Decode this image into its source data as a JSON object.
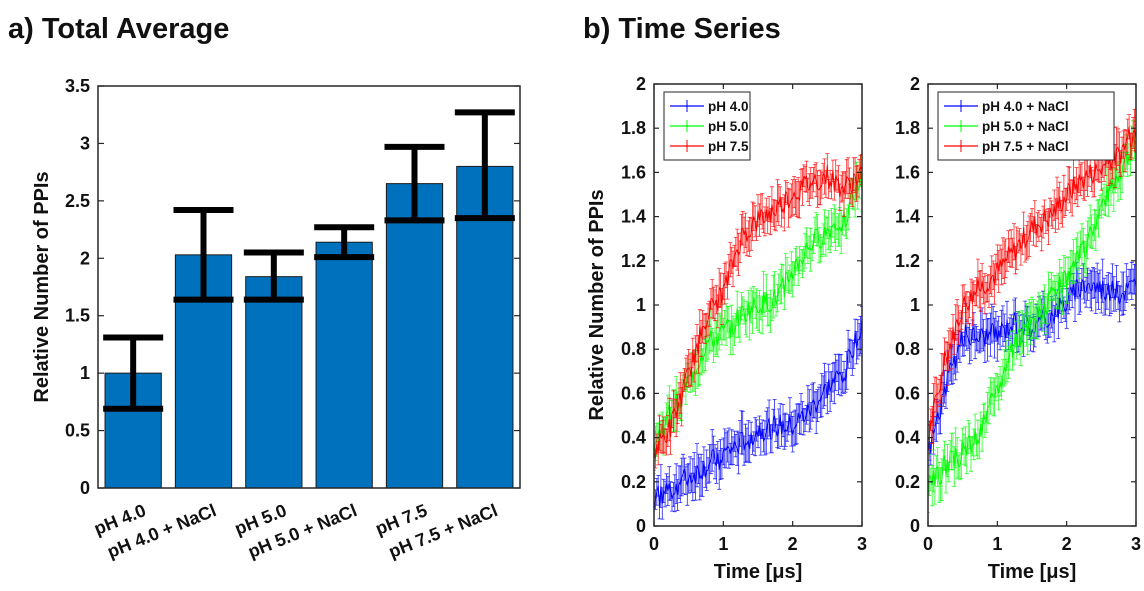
{
  "titles": {
    "a": "a) Total Average",
    "b": "b) Time Series"
  },
  "chart_data": [
    {
      "type": "bar",
      "title": "a) Total Average",
      "ylabel": "Relative Number of PPIs",
      "xlabel": "",
      "ylim": [
        0,
        3.5
      ],
      "yticks": [
        "0",
        "0.5",
        "1",
        "1.5",
        "2",
        "2.5",
        "3",
        "3.5"
      ],
      "categories": [
        "pH 4.0",
        "pH 4.0 + NaCl",
        "pH 5.0",
        "pH 5.0 + NaCl",
        "pH 7.5",
        "pH 7.5 + NaCl"
      ],
      "values": [
        1.0,
        2.03,
        1.84,
        2.14,
        2.65,
        2.8
      ],
      "error_low": [
        0.69,
        1.64,
        1.64,
        2.01,
        2.33,
        2.35
      ],
      "error_high": [
        1.31,
        2.42,
        2.05,
        2.27,
        2.97,
        3.27
      ],
      "bar_color": "#0072BD",
      "errorbar_color": "#000000",
      "grid": false
    },
    {
      "type": "line",
      "title": "b) Time Series",
      "xlabel": "Time [μs]",
      "ylabel": "Relative Number of PPIs",
      "xlim": [
        0,
        3
      ],
      "ylim": [
        0,
        2
      ],
      "xticks": [
        "0",
        "1",
        "2",
        "3"
      ],
      "yticks": [
        "0",
        "0.2",
        "0.4",
        "0.6",
        "0.8",
        "1",
        "1.2",
        "1.4",
        "1.6",
        "1.8",
        "2"
      ],
      "legend_position": "top-left",
      "grid": false,
      "series": [
        {
          "name": "pH 4.0",
          "color": "#0000FF",
          "x": [
            0,
            0.25,
            0.5,
            0.75,
            1.0,
            1.25,
            1.5,
            1.75,
            2.0,
            2.25,
            2.5,
            2.75,
            3.0
          ],
          "y": [
            0.12,
            0.17,
            0.22,
            0.27,
            0.32,
            0.37,
            0.43,
            0.45,
            0.45,
            0.52,
            0.62,
            0.7,
            0.93
          ]
        },
        {
          "name": "pH 5.0",
          "color": "#00FF00",
          "x": [
            0,
            0.25,
            0.5,
            0.75,
            1.0,
            1.25,
            1.5,
            1.75,
            2.0,
            2.25,
            2.5,
            2.75,
            3.0
          ],
          "y": [
            0.36,
            0.52,
            0.65,
            0.82,
            0.87,
            0.95,
            1.0,
            1.02,
            1.15,
            1.27,
            1.33,
            1.4,
            1.57
          ]
        },
        {
          "name": "pH 7.5",
          "color": "#FF0000",
          "x": [
            0,
            0.25,
            0.5,
            0.75,
            1.0,
            1.25,
            1.5,
            1.75,
            2.0,
            2.25,
            2.5,
            2.75,
            3.0
          ],
          "y": [
            0.33,
            0.45,
            0.68,
            0.95,
            1.05,
            1.3,
            1.38,
            1.43,
            1.5,
            1.55,
            1.58,
            1.52,
            1.6
          ]
        }
      ],
      "error_half_width": 0.07
    },
    {
      "type": "line",
      "title": "",
      "xlabel": "Time [μs]",
      "ylabel": "",
      "xlim": [
        0,
        3
      ],
      "ylim": [
        0,
        2
      ],
      "xticks": [
        "0",
        "1",
        "2",
        "3"
      ],
      "yticks": [
        "0",
        "0.2",
        "0.4",
        "0.6",
        "0.8",
        "1",
        "1.2",
        "1.4",
        "1.6",
        "1.8",
        "2"
      ],
      "legend_position": "top-left",
      "grid": false,
      "series": [
        {
          "name": "pH 4.0 + NaCl",
          "color": "#0000FF",
          "x": [
            0,
            0.25,
            0.5,
            0.75,
            1.0,
            1.25,
            1.5,
            1.75,
            2.0,
            2.25,
            2.5,
            2.75,
            3.0
          ],
          "y": [
            0.33,
            0.62,
            0.86,
            0.86,
            0.87,
            0.93,
            0.9,
            0.95,
            1.02,
            1.1,
            1.08,
            1.05,
            1.1
          ]
        },
        {
          "name": "pH 5.0 + NaCl",
          "color": "#00FF00",
          "x": [
            0,
            0.25,
            0.5,
            0.75,
            1.0,
            1.25,
            1.5,
            1.75,
            2.0,
            2.25,
            2.5,
            2.75,
            3.0
          ],
          "y": [
            0.17,
            0.27,
            0.33,
            0.42,
            0.62,
            0.82,
            0.92,
            1.02,
            1.12,
            1.25,
            1.45,
            1.6,
            1.75
          ]
        },
        {
          "name": "pH 7.5 + NaCl",
          "color": "#FF0000",
          "x": [
            0,
            0.25,
            0.5,
            0.75,
            1.0,
            1.25,
            1.5,
            1.75,
            2.0,
            2.25,
            2.5,
            2.75,
            3.0
          ],
          "y": [
            0.4,
            0.75,
            1.0,
            1.08,
            1.15,
            1.25,
            1.35,
            1.4,
            1.5,
            1.58,
            1.62,
            1.68,
            1.8
          ]
        }
      ],
      "error_half_width": 0.07
    }
  ]
}
